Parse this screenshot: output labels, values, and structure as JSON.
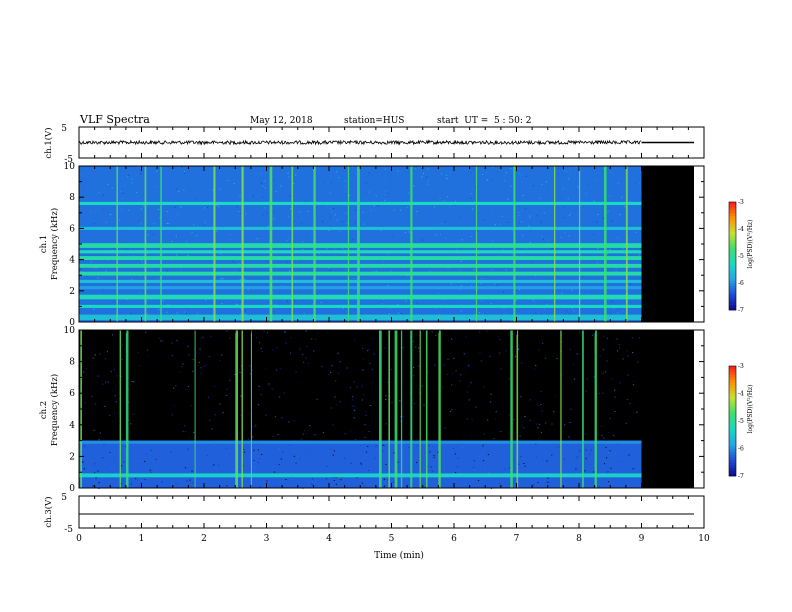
{
  "header": {
    "title": "VLF Spectra",
    "date": "May 12, 2018",
    "station": "station=HUS",
    "start": "start  UT =  5 : 50: 2"
  },
  "colors": {
    "background": "#ffffff",
    "no_data": "#000000",
    "colormap": [
      "#000000",
      "#0a0a8f",
      "#1f4bd8",
      "#22a7e6",
      "#19d9c3",
      "#3ce06a",
      "#c8e030",
      "#ff9000",
      "#ff1a1a",
      "#ffffff"
    ]
  },
  "chart_data": [
    {
      "type": "line",
      "panel": "ch1-waveform",
      "ylabel": "ch.1(V)",
      "ylim": [
        -5,
        5
      ],
      "yticks": [
        "5",
        "-5"
      ],
      "xlim": [
        0,
        10
      ],
      "data_end_min": 9.0,
      "signal": "noisy trace near 0 V, flat line after 9 min"
    },
    {
      "type": "heatmap",
      "panel": "ch1-spectrogram",
      "ylabel": "ch.1",
      "ylabel2": "Frequency (kHz)",
      "xlim": [
        0,
        10
      ],
      "ylim": [
        0,
        10
      ],
      "yticks": [
        "0",
        "2",
        "4",
        "6",
        "8",
        "10"
      ],
      "data_end_min": 9.0,
      "colorbar": {
        "label": "log(PSD)(V²/Hz)",
        "ticks": [
          "-3",
          "-4",
          "-5",
          "-6",
          "-7"
        ],
        "range": [
          -7,
          -3
        ]
      },
      "background_level": -6.2,
      "horizontal_bands_khz": [
        {
          "freq": 0.3,
          "width": 0.35,
          "level": -5.6
        },
        {
          "freq": 1.0,
          "width": 0.2,
          "level": -5.3
        },
        {
          "freq": 1.6,
          "width": 0.3,
          "level": -5.2
        },
        {
          "freq": 2.2,
          "width": 0.2,
          "level": -5.9
        },
        {
          "freq": 2.6,
          "width": 0.2,
          "level": -5.6
        },
        {
          "freq": 3.1,
          "width": 0.25,
          "level": -5.1
        },
        {
          "freq": 3.6,
          "width": 0.25,
          "level": -5.1
        },
        {
          "freq": 4.1,
          "width": 0.25,
          "level": -5.1
        },
        {
          "freq": 4.5,
          "width": 0.2,
          "level": -5.2
        },
        {
          "freq": 4.9,
          "width": 0.3,
          "level": -5.1
        },
        {
          "freq": 6.0,
          "width": 0.2,
          "level": -5.6
        },
        {
          "freq": 7.6,
          "width": 0.2,
          "level": -5.3
        }
      ],
      "vertical_bursts_min": [
        0.6,
        1.05,
        1.3,
        2.15,
        2.6,
        3.05,
        3.4,
        3.75,
        4.3,
        4.45,
        5.3,
        6.35,
        6.95,
        7.6,
        8.0,
        8.4,
        8.75
      ]
    },
    {
      "type": "heatmap",
      "panel": "ch2-spectrogram",
      "ylabel": "ch.2",
      "ylabel2": "Frequency (kHz)",
      "xlim": [
        0,
        10
      ],
      "ylim": [
        0,
        10
      ],
      "yticks": [
        "0",
        "2",
        "4",
        "6",
        "8",
        "10"
      ],
      "data_end_min": 9.0,
      "colorbar": {
        "label": "log(PSD)(V²/Hz)",
        "ticks": [
          "-3",
          "-4",
          "-5",
          "-6",
          "-7"
        ],
        "range": [
          -7,
          -3
        ]
      },
      "background_level": -7.0,
      "low_band_khz": [
        0,
        3
      ],
      "low_band_level": -6.3,
      "horizontal_bands_khz": [
        {
          "freq": 0.8,
          "width": 0.25,
          "level": -5.4
        },
        {
          "freq": 2.9,
          "width": 0.2,
          "level": -6.0
        }
      ],
      "vertical_bursts_min": [
        0.02,
        0.65,
        0.75,
        1.85,
        2.5,
        2.6,
        2.75,
        4.8,
        4.95,
        5.05,
        5.15,
        5.3,
        5.45,
        5.55,
        5.75,
        6.9,
        7.0,
        7.7,
        8.05,
        8.25
      ]
    },
    {
      "type": "line",
      "panel": "ch3-waveform",
      "ylabel": "ch.3(V)",
      "xlabel": "Time (min)",
      "ylim": [
        -5,
        5
      ],
      "yticks": [
        "5",
        "-5"
      ],
      "xlim": [
        0,
        10
      ],
      "xticks": [
        "0",
        "1",
        "2",
        "3",
        "4",
        "5",
        "6",
        "7",
        "8",
        "9",
        "10"
      ],
      "signal": "flat line slightly below 0 V"
    }
  ]
}
